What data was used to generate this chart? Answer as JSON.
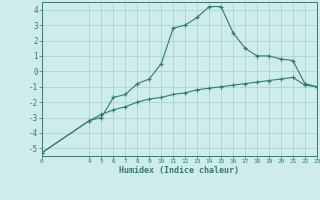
{
  "xlabel": "Humidex (Indice chaleur)",
  "x_ticks": [
    0,
    4,
    5,
    6,
    7,
    8,
    9,
    10,
    11,
    12,
    13,
    14,
    15,
    16,
    17,
    18,
    19,
    20,
    21,
    22,
    23
  ],
  "line1_x": [
    0,
    4,
    5,
    6,
    7,
    8,
    9,
    10,
    11,
    12,
    13,
    14,
    15,
    16,
    17,
    18,
    19,
    20,
    21,
    22,
    23
  ],
  "line1_y": [
    -5.3,
    -3.2,
    -3.0,
    -1.7,
    -1.5,
    -0.8,
    -0.5,
    0.5,
    2.8,
    3.0,
    3.5,
    4.2,
    4.2,
    2.5,
    1.5,
    1.0,
    1.0,
    0.8,
    0.7,
    -0.8,
    -1.0
  ],
  "line2_x": [
    0,
    4,
    5,
    6,
    7,
    8,
    9,
    10,
    11,
    12,
    13,
    14,
    15,
    16,
    17,
    18,
    19,
    20,
    21,
    22,
    23
  ],
  "line2_y": [
    -5.3,
    -3.2,
    -2.8,
    -2.5,
    -2.3,
    -2.0,
    -1.8,
    -1.7,
    -1.5,
    -1.4,
    -1.2,
    -1.1,
    -1.0,
    -0.9,
    -0.8,
    -0.7,
    -0.6,
    -0.5,
    -0.4,
    -0.9,
    -1.0
  ],
  "line_color": "#2e7d6e",
  "bg_color": "#ceecea",
  "grid_color": "#aed4d1",
  "ylim": [
    -5.5,
    4.5
  ],
  "yticks": [
    -5,
    -4,
    -3,
    -2,
    -1,
    0,
    1,
    2,
    3,
    4
  ],
  "fig_width": 3.2,
  "fig_height": 2.0,
  "dpi": 100
}
